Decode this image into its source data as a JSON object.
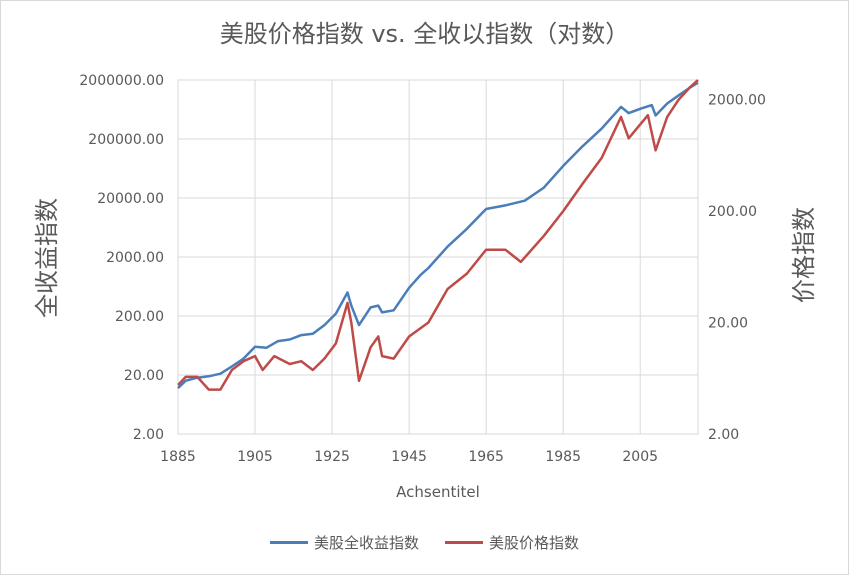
{
  "chart_data": {
    "type": "line",
    "title": "美股价格指数 vs. 全收以指数（对数）",
    "xlabel": "Achsentitel",
    "ylabel_left": "全收益指数",
    "ylabel_right": "价格指数",
    "y_scale": "log",
    "grid": true,
    "legend_position": "bottom",
    "xlim": [
      1885,
      2020
    ],
    "ylim_left": [
      2,
      2000000
    ],
    "ylim_right": [
      2,
      3000
    ],
    "x_ticks": [
      "1885",
      "1905",
      "1925",
      "1945",
      "1965",
      "1985",
      "2005"
    ],
    "y_ticks_left": [
      "2.00",
      "20.00",
      "200.00",
      "2000.00",
      "20000.00",
      "200000.00",
      "2000000.00"
    ],
    "y_ticks_right": [
      "2.00",
      "20.00",
      "200.00",
      "2000.00"
    ],
    "series": [
      {
        "name": "美股全收益指数",
        "color": "#4a7ebb",
        "axis": "left",
        "x": [
          1885,
          1887,
          1890,
          1893,
          1896,
          1899,
          1902,
          1905,
          1908,
          1911,
          1914,
          1917,
          1920,
          1923,
          1926,
          1929,
          1930,
          1932,
          1935,
          1937,
          1938,
          1941,
          1945,
          1948,
          1950,
          1955,
          1960,
          1965,
          1970,
          1975,
          1980,
          1985,
          1990,
          1995,
          2000,
          2002,
          2005,
          2008,
          2009,
          2012,
          2015,
          2018,
          2020
        ],
        "values": [
          12,
          16,
          18,
          19,
          21,
          28,
          38,
          60,
          58,
          75,
          80,
          95,
          100,
          140,
          220,
          500,
          300,
          140,
          280,
          300,
          230,
          250,
          600,
          1000,
          1300,
          3000,
          6000,
          13000,
          15000,
          18000,
          30000,
          70000,
          150000,
          300000,
          700000,
          550000,
          650000,
          750000,
          500000,
          800000,
          1100000,
          1500000,
          1800000
        ]
      },
      {
        "name": "美股价格指数",
        "color": "#be4b48",
        "axis": "right",
        "x": [
          1885,
          1887,
          1890,
          1893,
          1896,
          1899,
          1902,
          1905,
          1907,
          1910,
          1914,
          1917,
          1920,
          1923,
          1926,
          1929,
          1930,
          1932,
          1935,
          1937,
          1938,
          1941,
          1945,
          1950,
          1955,
          1960,
          1965,
          1970,
          1974,
          1980,
          1985,
          1990,
          1995,
          2000,
          2002,
          2005,
          2007,
          2009,
          2012,
          2015,
          2018,
          2020
        ],
        "values": [
          5.5,
          6.5,
          6.5,
          5.0,
          5.0,
          7.5,
          9.0,
          10.0,
          7.5,
          10.0,
          8.5,
          9.0,
          7.5,
          9.5,
          13.0,
          30.0,
          20.0,
          6.0,
          12.0,
          15.0,
          10.0,
          9.5,
          15.0,
          20.0,
          40.0,
          55.0,
          90.0,
          90.0,
          70.0,
          120.0,
          200.0,
          350.0,
          600.0,
          1400.0,
          900.0,
          1200.0,
          1450.0,
          700.0,
          1400.0,
          2000.0,
          2600.0,
          3000.0
        ]
      }
    ]
  }
}
